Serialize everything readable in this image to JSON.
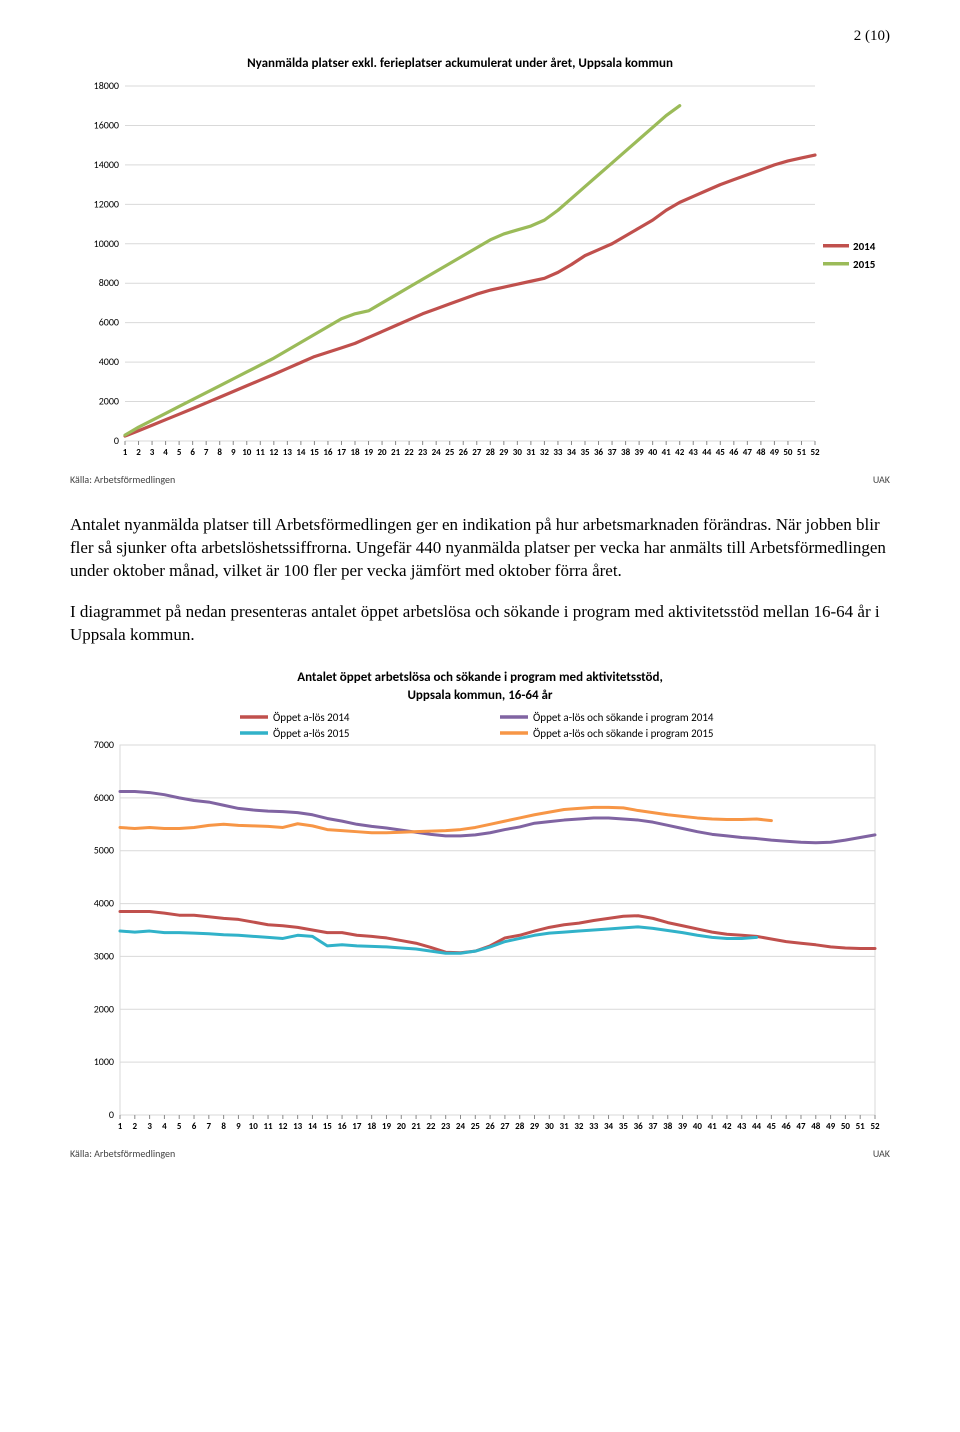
{
  "page_number": "2 (10)",
  "paragraph1": "Antalet nyanmälda platser till Arbetsförmedlingen ger en indikation på hur arbetsmarknaden förändras. När jobben blir fler så sjunker ofta arbetslöshetssiffrorna. Ungefär 440 nyanmälda platser per vecka har anmälts till Arbetsförmedlingen under oktober månad, vilket är 100 fler per vecka jämfört med oktober förra året.",
  "paragraph2": "I diagrammet på nedan presenteras antalet öppet arbetslösa och sökande i program med aktivitetsstöd mellan 16-64 år i Uppsala kommun.",
  "chart1": {
    "type": "line",
    "title": "Nyanmälda platser exkl. ferieplatser ackumulerat under året, Uppsala kommun",
    "title_fontsize": 13,
    "title_weight": "bold",
    "source_left": "Källa: Arbetsförmedlingen",
    "source_right": "UAK",
    "x_weeks": [
      1,
      2,
      3,
      4,
      5,
      6,
      7,
      8,
      9,
      10,
      11,
      12,
      13,
      14,
      15,
      16,
      17,
      18,
      19,
      20,
      21,
      22,
      23,
      24,
      25,
      26,
      27,
      28,
      29,
      30,
      31,
      32,
      33,
      34,
      35,
      36,
      37,
      38,
      39,
      40,
      41,
      42,
      43,
      44,
      45,
      46,
      47,
      48,
      49,
      50,
      51,
      52
    ],
    "ylim": [
      0,
      18000
    ],
    "ytick_step": 2000,
    "grid_color": "#d9d9d9",
    "background_color": "#ffffff",
    "line_width": 3.2,
    "axis_font": "Calibri",
    "axis_fontsize": 10,
    "legend_items": [
      {
        "label": "2014",
        "color": "#c0504d"
      },
      {
        "label": "2015",
        "color": "#9bbb59"
      }
    ],
    "series": {
      "y2014": {
        "color": "#c0504d",
        "values": [
          250,
          520,
          800,
          1080,
          1360,
          1640,
          1930,
          2220,
          2510,
          2800,
          3090,
          3380,
          3680,
          3980,
          4280,
          4500,
          4720,
          4950,
          5250,
          5550,
          5850,
          6150,
          6450,
          6700,
          6950,
          7200,
          7450,
          7650,
          7800,
          7950,
          8100,
          8250,
          8550,
          8950,
          9400,
          9700,
          10000,
          10400,
          10800,
          11200,
          11700,
          12100,
          12400,
          12700,
          13000,
          13250,
          13500,
          13750,
          14000,
          14200,
          14350,
          14500
        ]
      },
      "y2015": {
        "color": "#9bbb59",
        "values": [
          300,
          700,
          1050,
          1400,
          1750,
          2100,
          2450,
          2800,
          3150,
          3500,
          3850,
          4200,
          4600,
          5000,
          5400,
          5800,
          6200,
          6450,
          6600,
          7000,
          7400,
          7800,
          8200,
          8600,
          9000,
          9400,
          9800,
          10200,
          10500,
          10700,
          10900,
          11200,
          11700,
          12300,
          12900,
          13500,
          14100,
          14700,
          15300,
          15900,
          16500,
          17000,
          0,
          0,
          0,
          0,
          0,
          0,
          0,
          0,
          0,
          0
        ],
        "cutoff": 42
      }
    }
  },
  "chart2": {
    "type": "line",
    "title": "Antalet öppet arbetslösa och sökande i program med aktivitetsstöd, Uppsala kommun, 16-64 år",
    "title_fontsize": 13,
    "title_weight": "bold",
    "source_left": "Källa: Arbetsförmedlingen",
    "source_right": "UAK",
    "x_weeks": [
      1,
      2,
      3,
      4,
      5,
      6,
      7,
      8,
      9,
      10,
      11,
      12,
      13,
      14,
      15,
      16,
      17,
      18,
      19,
      20,
      21,
      22,
      23,
      24,
      25,
      26,
      27,
      28,
      29,
      30,
      31,
      32,
      33,
      34,
      35,
      36,
      37,
      38,
      39,
      40,
      41,
      42,
      43,
      44,
      45,
      46,
      47,
      48,
      49,
      50,
      51,
      52
    ],
    "ylim": [
      0,
      7000
    ],
    "ytick_step": 1000,
    "grid_color": "#d9d9d9",
    "background_color": "#ffffff",
    "line_width": 3,
    "axis_font": "Calibri",
    "axis_fontsize": 10,
    "legend_items": [
      {
        "label": "Öppet a-lös 2014",
        "color": "#c0504d"
      },
      {
        "label": "Öppet a-lös 2015",
        "color": "#31b2c9"
      },
      {
        "label": "Öppet a-lös och sökande i program 2014",
        "color": "#8064a2"
      },
      {
        "label": "Öppet a-lös och sökande i program 2015",
        "color": "#f79646"
      }
    ],
    "series": {
      "open2014": {
        "color": "#c0504d",
        "values": [
          3850,
          3850,
          3850,
          3820,
          3780,
          3780,
          3750,
          3720,
          3700,
          3650,
          3600,
          3580,
          3550,
          3500,
          3450,
          3450,
          3400,
          3380,
          3350,
          3300,
          3250,
          3170,
          3080,
          3070,
          3100,
          3200,
          3350,
          3400,
          3480,
          3550,
          3600,
          3630,
          3680,
          3720,
          3760,
          3770,
          3720,
          3640,
          3580,
          3520,
          3460,
          3420,
          3400,
          3380,
          3330,
          3280,
          3250,
          3220,
          3180,
          3160,
          3150,
          3150
        ]
      },
      "open2015": {
        "color": "#31b2c9",
        "values": [
          3480,
          3460,
          3480,
          3450,
          3450,
          3440,
          3430,
          3410,
          3400,
          3380,
          3360,
          3340,
          3400,
          3380,
          3200,
          3220,
          3200,
          3190,
          3180,
          3160,
          3140,
          3100,
          3060,
          3060,
          3100,
          3180,
          3280,
          3340,
          3400,
          3440,
          3460,
          3480,
          3500,
          3520,
          3540,
          3560,
          3530,
          3490,
          3450,
          3400,
          3360,
          3340,
          3340,
          3360,
          0,
          0,
          0,
          0,
          0,
          0,
          0,
          0
        ],
        "cutoff": 44
      },
      "prog2014": {
        "color": "#8064a2",
        "values": [
          6120,
          6120,
          6100,
          6060,
          6000,
          5950,
          5920,
          5860,
          5800,
          5770,
          5750,
          5740,
          5720,
          5680,
          5610,
          5560,
          5500,
          5460,
          5430,
          5390,
          5350,
          5310,
          5280,
          5280,
          5300,
          5340,
          5400,
          5450,
          5520,
          5550,
          5580,
          5600,
          5620,
          5620,
          5600,
          5580,
          5540,
          5480,
          5420,
          5360,
          5310,
          5280,
          5250,
          5230,
          5200,
          5180,
          5160,
          5150,
          5160,
          5200,
          5250,
          5300
        ]
      },
      "prog2015": {
        "color": "#f79646",
        "values": [
          5440,
          5420,
          5440,
          5420,
          5420,
          5440,
          5480,
          5500,
          5480,
          5470,
          5460,
          5440,
          5510,
          5470,
          5400,
          5380,
          5360,
          5340,
          5340,
          5350,
          5360,
          5370,
          5380,
          5400,
          5440,
          5500,
          5560,
          5620,
          5680,
          5730,
          5780,
          5800,
          5820,
          5820,
          5810,
          5760,
          5720,
          5680,
          5650,
          5620,
          5600,
          5590,
          5590,
          5600,
          5570,
          0,
          0,
          0,
          0,
          0,
          0,
          0
        ],
        "cutoff": 45
      }
    }
  }
}
